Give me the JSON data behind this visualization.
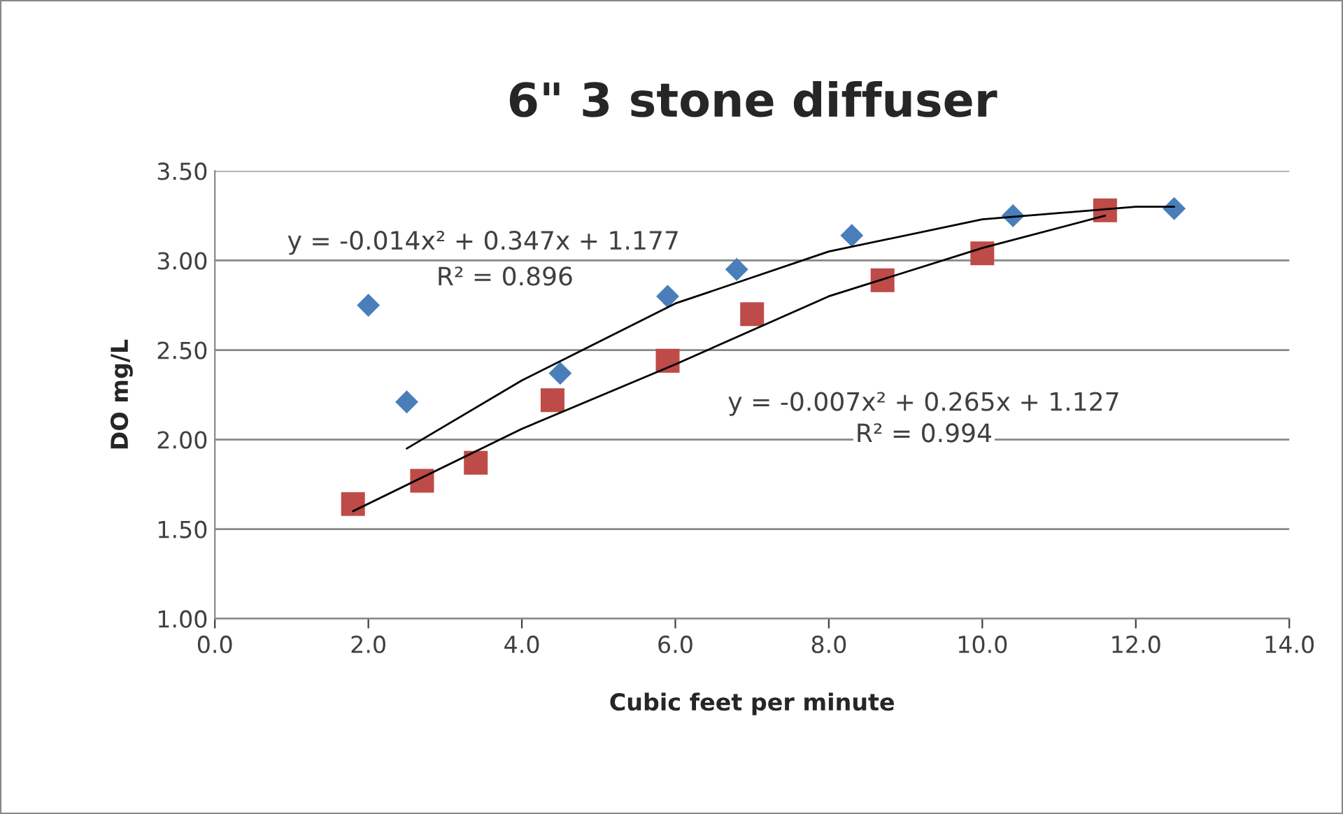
{
  "chart_data": {
    "type": "scatter",
    "title": "6\" 3 stone diffuser",
    "xlabel": "Cubic feet per minute",
    "ylabel": "DO mg/L",
    "series": [
      {
        "marker": "diamond",
        "color": "#4a7ebb",
        "x": [
          2.0,
          2.5,
          4.5,
          5.9,
          6.8,
          8.3,
          10.4,
          12.5
        ],
        "values": [
          2.75,
          2.21,
          2.37,
          2.8,
          2.95,
          3.14,
          3.25,
          3.29
        ]
      },
      {
        "marker": "square",
        "color": "#be4b48",
        "x": [
          1.8,
          2.7,
          3.4,
          4.4,
          5.9,
          7.0,
          8.7,
          10.0,
          11.6
        ],
        "values": [
          1.64,
          1.77,
          1.87,
          2.22,
          2.44,
          2.7,
          2.89,
          3.04,
          3.28
        ]
      },
      {
        "type": "line",
        "color": "#000000",
        "x": [
          2.5,
          4.0,
          6.0,
          8.0,
          10.0,
          12.0,
          12.5
        ],
        "values": [
          1.95,
          2.33,
          2.76,
          3.05,
          3.23,
          3.3,
          3.3
        ]
      },
      {
        "type": "line",
        "color": "#000000",
        "x": [
          1.8,
          4.0,
          6.0,
          8.0,
          10.0,
          11.6
        ],
        "values": [
          1.6,
          2.06,
          2.42,
          2.8,
          3.07,
          3.25
        ]
      }
    ],
    "annotations": [
      "y = -0.014x² + 0.347x + 1.177",
      "R² = 0.896",
      "y = -0.007x² + 0.265x + 1.127",
      "R² = 0.994"
    ],
    "xlim": [
      0,
      14
    ],
    "ylim": [
      1.0,
      3.5
    ],
    "xticks": [
      {
        "value": 0,
        "label": "0.0"
      },
      {
        "value": 2,
        "label": "2.0"
      },
      {
        "value": 4,
        "label": "4.0"
      },
      {
        "value": 6,
        "label": "6.0"
      },
      {
        "value": 8,
        "label": "8.0"
      },
      {
        "value": 10,
        "label": "10.0"
      },
      {
        "value": 12,
        "label": "12.0"
      },
      {
        "value": 14,
        "label": "14.0"
      }
    ],
    "yticks": [
      {
        "value": 1.0,
        "label": "1.00"
      },
      {
        "value": 1.5,
        "label": "1.50"
      },
      {
        "value": 2.0,
        "label": "2.00"
      },
      {
        "value": 2.5,
        "label": "2.50"
      },
      {
        "value": 3.0,
        "label": "3.00"
      },
      {
        "value": 3.5,
        "label": "3.50"
      }
    ],
    "grid": "y",
    "legend": false
  }
}
